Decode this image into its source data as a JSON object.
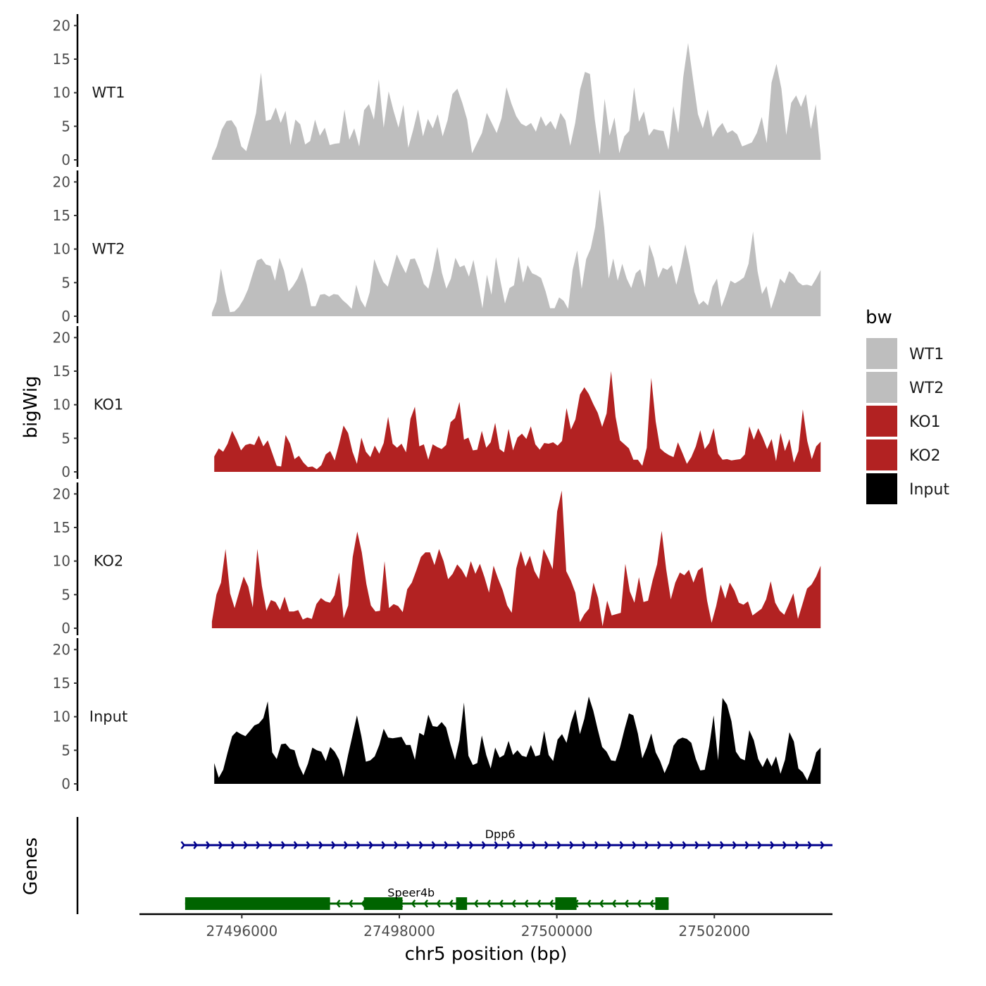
{
  "chart_data": {
    "type": "area",
    "ylabel": "bigWig",
    "xlabel": "chr5 position (bp)",
    "genes_label": "Genes",
    "y_ticks": [
      "0",
      "5",
      "10",
      "15",
      "20"
    ],
    "ylim": [
      0,
      21.5
    ],
    "xlim": [
      27494700,
      27503500
    ],
    "x_ticks": [
      {
        "value": 27496000,
        "label": "27496000"
      },
      {
        "value": 27498000,
        "label": "27498000"
      },
      {
        "value": 27500000,
        "label": "27500000"
      },
      {
        "value": 27502000,
        "label": "27502000"
      }
    ],
    "legend": {
      "title": "bw",
      "entries": [
        {
          "label": "WT1",
          "color": "#BEBEBE"
        },
        {
          "label": "WT2",
          "color": "#BEBEBE"
        },
        {
          "label": "KO1",
          "color": "#B22222"
        },
        {
          "label": "KO2",
          "color": "#B22222"
        },
        {
          "label": "Input",
          "color": "#000000"
        }
      ]
    },
    "tracks": [
      {
        "name": "WT1",
        "color": "#BEBEBE",
        "x_start": 27495620,
        "x_end": 27503350,
        "values": [
          0.3,
          2,
          4.5,
          5.8,
          5.9,
          4.8,
          2,
          1.3,
          4,
          7,
          13,
          5.8,
          6,
          7.8,
          5.5,
          7.3,
          2.2,
          6,
          5.3,
          2.3,
          2.8,
          6,
          3.6,
          4.8,
          2.2,
          2.4,
          2.5,
          7.5,
          3,
          4.7,
          2,
          7.4,
          8.3,
          6,
          12,
          4.8,
          10.2,
          7.3,
          4.8,
          8.2,
          1.8,
          4.5,
          7.5,
          3.5,
          6.1,
          4.7,
          6.8,
          3.5,
          5.9,
          9.8,
          10.6,
          8.5,
          6,
          1,
          2.5,
          4,
          7,
          5.5,
          4,
          6.2,
          10.8,
          8.4,
          6.5,
          5.4,
          5,
          5.5,
          4.2,
          6.5,
          5,
          5.8,
          4.5,
          7,
          5.9,
          2.1,
          5.5,
          10.5,
          13.1,
          12.8,
          6,
          0.8,
          9.1,
          3.6,
          6.3,
          1,
          3.5,
          4.3,
          10.8,
          5.7,
          7.2,
          3.6,
          4.6,
          4.4,
          4.3,
          1.5,
          8,
          4,
          12.3,
          17.4,
          12,
          6.8,
          4.7,
          7.5,
          3.4,
          4.7,
          5.5,
          4,
          4.4,
          3.8,
          2,
          2.3,
          2.6,
          4,
          6.4,
          2.5,
          11.5,
          14.3,
          10.6,
          3.7,
          8.5,
          9.6,
          7.9,
          9.8,
          4.6,
          8.3,
          0.8
        ]
      },
      {
        "name": "WT2",
        "color": "#BEBEBE",
        "x_start": 27495620,
        "x_end": 27503350,
        "values": [
          0.5,
          2.2,
          7.1,
          3.5,
          0.6,
          0.7,
          1.4,
          2.5,
          4,
          6.2,
          8.3,
          8.6,
          7.7,
          7.5,
          5.3,
          8.7,
          6.8,
          3.7,
          4.5,
          5.6,
          7.3,
          4.8,
          1.5,
          1.5,
          3.2,
          3.3,
          2.9,
          3.3,
          3.2,
          2.4,
          1.8,
          1.1,
          4.7,
          2.4,
          1.3,
          3.6,
          8.5,
          6.7,
          5.1,
          4.4,
          6.8,
          9.2,
          7.7,
          6.4,
          8.5,
          8.6,
          7,
          4.8,
          4.1,
          6.9,
          10.3,
          6.5,
          4.1,
          5.6,
          8.7,
          7.3,
          7.6,
          5.9,
          8.4,
          4.9,
          1.2,
          6.2,
          3.2,
          8.8,
          5.2,
          1.9,
          4.2,
          4.6,
          8.9,
          5,
          7.6,
          6.4,
          6.1,
          5.7,
          3.7,
          1.2,
          1.2,
          2.8,
          2.3,
          1.1,
          6.9,
          9.8,
          4.1,
          8.5,
          10.1,
          13.3,
          18.9,
          13.2,
          5.6,
          8.6,
          5.3,
          7.8,
          5.6,
          4.2,
          6.4,
          7,
          4.3,
          10.7,
          8.7,
          5.7,
          7.2,
          6.9,
          7.6,
          4.7,
          7.3,
          10.7,
          7.5,
          3.6,
          1.7,
          2.3,
          1.6,
          4.4,
          5.6,
          1.4,
          3.2,
          5.3,
          4.9,
          5.3,
          5.8,
          7.8,
          12.6,
          6.7,
          3.3,
          4.5,
          1.1,
          3.2,
          5.6,
          4.9,
          6.7,
          6.2,
          5.1,
          4.6,
          4.7,
          4.5,
          5.6,
          6.9
        ]
      },
      {
        "name": "KO1",
        "color": "#B22222",
        "x_start": 27495650,
        "x_end": 27503350,
        "values": [
          2.3,
          3.5,
          3,
          4.2,
          6.1,
          4.8,
          3.2,
          4,
          4.2,
          4,
          5.4,
          3.8,
          4.7,
          2.8,
          0.9,
          0.8,
          5.5,
          4.2,
          1.9,
          2.4,
          1.4,
          0.7,
          0.8,
          0.4,
          1,
          2.6,
          3.1,
          1.7,
          4.2,
          6.9,
          5.8,
          3,
          1.2,
          5.1,
          3,
          2.2,
          3.9,
          2.7,
          4.3,
          8.2,
          4.2,
          3.6,
          4.2,
          2.9,
          7.9,
          9.7,
          3.8,
          4.1,
          1.8,
          4.1,
          3.7,
          3.4,
          4,
          7.4,
          8,
          10.4,
          4.8,
          5.1,
          3.2,
          3.3,
          6.1,
          3.6,
          4.4,
          7.3,
          3.4,
          2.9,
          6.4,
          3.2,
          5.1,
          5.7,
          4.9,
          6.8,
          4.1,
          3.3,
          4.3,
          4.2,
          4.4,
          3.9,
          4.6,
          9.5,
          6.3,
          7.8,
          11.5,
          12.6,
          11.6,
          10.1,
          8.8,
          6.7,
          8.7,
          15,
          8.2,
          4.7,
          4.1,
          3.5,
          1.8,
          1.8,
          0.9,
          3.6,
          14,
          7.5,
          3.5,
          2.9,
          2.5,
          2.2,
          4.4,
          2.8,
          1.2,
          2.2,
          3.8,
          6.2,
          3.4,
          4.3,
          6.5,
          2.7,
          1.8,
          1.9,
          1.7,
          1.8,
          1.9,
          2.6,
          6.8,
          4.8,
          6.5,
          5.1,
          3.4,
          4.9,
          1.6,
          5.8,
          3.1,
          4.9,
          1.4,
          3.1,
          9.3,
          4.6,
          1.9,
          3.8,
          4.5
        ]
      },
      {
        "name": "KO2",
        "color": "#B22222",
        "x_start": 27495620,
        "x_end": 27503350,
        "values": [
          1,
          5,
          6.8,
          11.8,
          5.2,
          3,
          5.4,
          7.7,
          6.2,
          3.1,
          11.8,
          6.3,
          2.6,
          4.2,
          3.9,
          2.7,
          4.7,
          2.5,
          2.5,
          2.7,
          1.3,
          1.6,
          1.4,
          3.6,
          4.5,
          4,
          3.8,
          4.9,
          8.3,
          1.5,
          3.4,
          10.6,
          14.4,
          11.3,
          6.6,
          3.4,
          2.5,
          2.6,
          10,
          3,
          3.6,
          3.3,
          2.4,
          5.8,
          6.8,
          8.6,
          10.6,
          11.3,
          11.3,
          9.4,
          11.8,
          10,
          7.3,
          8.1,
          9.5,
          8.7,
          7.5,
          10,
          8.1,
          9.6,
          7.6,
          5.3,
          9.3,
          7.4,
          5.7,
          3.4,
          2.3,
          8.9,
          11.5,
          9.2,
          10.8,
          8.5,
          7.3,
          11.8,
          10.4,
          8.8,
          17.4,
          20.5,
          8.5,
          7.1,
          5.3,
          0.9,
          2.1,
          2.9,
          6.8,
          4.5,
          0.3,
          4.1,
          1.9,
          2.1,
          2.3,
          9.6,
          5.5,
          3.8,
          7.6,
          3.9,
          4.1,
          7.1,
          9.5,
          14.5,
          8.8,
          4.3,
          6.8,
          8.3,
          7.9,
          8.7,
          6.8,
          8.6,
          9.1,
          4.1,
          0.8,
          3.3,
          6.5,
          4.4,
          6.8,
          5.6,
          3.8,
          3.5,
          4,
          1.9,
          2.4,
          2.9,
          4.3,
          7,
          3.8,
          2.6,
          2,
          3.6,
          5.2,
          1.4,
          3.6,
          5.9,
          6.5,
          7.7,
          9.3
        ]
      },
      {
        "name": "Input",
        "color": "#000000",
        "x_start": 27495650,
        "x_end": 27503350,
        "values": [
          3.1,
          0.9,
          2.1,
          4.7,
          7.1,
          7.8,
          7.4,
          7.1,
          7.9,
          8.7,
          9,
          9.8,
          12.3,
          4.7,
          3.7,
          5.9,
          6,
          5.2,
          5,
          2.7,
          1.3,
          3,
          5.4,
          5,
          4.8,
          3.4,
          5.5,
          4.8,
          3.6,
          1,
          4.3,
          7.2,
          10.2,
          7.1,
          3.3,
          3.5,
          4.1,
          5.8,
          8.2,
          6.9,
          6.8,
          6.9,
          7,
          5.8,
          5.8,
          3.6,
          7.6,
          7.2,
          10.3,
          8.6,
          8.5,
          9.2,
          8.4,
          5.8,
          3.6,
          6.5,
          12.1,
          4.2,
          2.8,
          3.1,
          7.2,
          4.3,
          2.3,
          5.4,
          3.9,
          4.3,
          6.4,
          4.3,
          5,
          4.2,
          4,
          5.8,
          4.1,
          4.3,
          7.9,
          4.3,
          3.4,
          6.6,
          7.4,
          6.1,
          9.1,
          11.1,
          7.4,
          9.7,
          13,
          10.9,
          8.1,
          5.5,
          4.8,
          3.5,
          3.4,
          5.4,
          8.1,
          10.5,
          10.2,
          7.5,
          3.8,
          5.4,
          7.5,
          4.7,
          3.4,
          1.6,
          3.1,
          5.7,
          6.6,
          6.9,
          6.7,
          6.1,
          3.7,
          2,
          2.1,
          5.6,
          10.2,
          3.5,
          12.8,
          11.8,
          9.3,
          4.8,
          3.8,
          3.5,
          8,
          6.5,
          3.7,
          2.5,
          3.9,
          2.6,
          4.1,
          1.5,
          3.6,
          7.7,
          6.3,
          2.3,
          1.7,
          0.5,
          2.2,
          4.7,
          5.4
        ]
      }
    ],
    "genes": [
      {
        "name": "Dpp6",
        "color": "#00008B",
        "strand": "+",
        "start": 27495250,
        "end": 27503500,
        "exons": [],
        "label_x": 27499280
      },
      {
        "name": "Speer4b",
        "color": "#006400",
        "strand": "-",
        "start": 27495280,
        "end": 27501420,
        "exons": [
          [
            27495280,
            27497120
          ],
          [
            27497550,
            27498040
          ],
          [
            27498720,
            27498860
          ],
          [
            27499980,
            27500250
          ],
          [
            27501250,
            27501420
          ]
        ],
        "label_x": 27498150
      }
    ]
  }
}
